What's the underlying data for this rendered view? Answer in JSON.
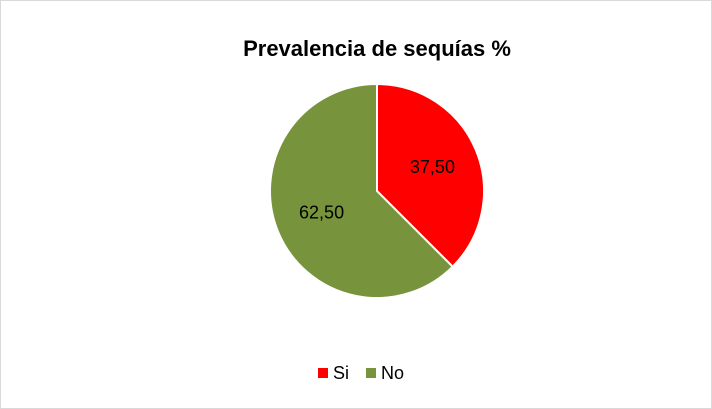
{
  "chart_data": {
    "type": "pie",
    "title": "Prevalencia de sequías %",
    "categories": [
      "Si",
      "No"
    ],
    "values": [
      37.5,
      62.5
    ],
    "value_labels": [
      "37,50",
      "62,50"
    ],
    "colors": [
      "#ff0000",
      "#77933c"
    ],
    "legend": "bottom"
  }
}
